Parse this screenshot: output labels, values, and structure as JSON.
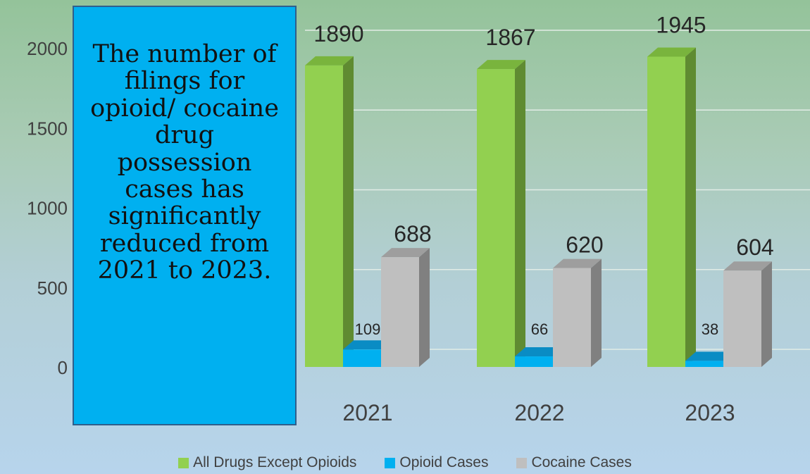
{
  "callout": {
    "text": "The number of filings for opioid/ cocaine drug possession cases has significantly reduced from 2021 to 2023."
  },
  "chart_data": {
    "type": "bar",
    "title": "",
    "xlabel": "",
    "ylabel": "",
    "categories": [
      "2021",
      "2022",
      "2023"
    ],
    "ylim": [
      0,
      2000
    ],
    "yticks": [
      0,
      500,
      1000,
      1500,
      2000
    ],
    "grid": true,
    "legend_position": "bottom",
    "style": "3d-clustered-column",
    "series": [
      {
        "name": "All Drugs Except Opioids",
        "values": [
          1890,
          1867,
          1945
        ],
        "color": "#92d050",
        "side_color": "#5f8b31",
        "top_color": "#79b43d"
      },
      {
        "name": "Opioid Cases",
        "values": [
          109,
          66,
          38
        ],
        "color": "#00b0f0",
        "side_color": "#0077a6",
        "top_color": "#0a8cc4"
      },
      {
        "name": "Cocaine Cases",
        "values": [
          688,
          620,
          604
        ],
        "color": "#bfbfbf",
        "side_color": "#808080",
        "top_color": "#9e9e9e"
      }
    ]
  }
}
